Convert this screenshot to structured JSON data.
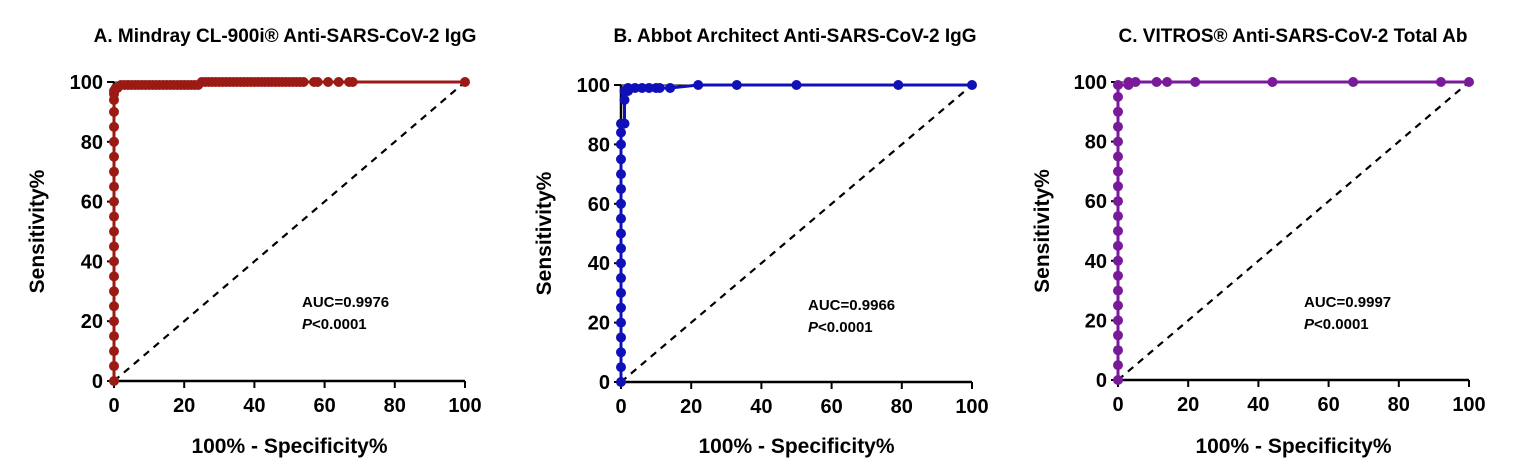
{
  "chart_data": [
    {
      "type": "line",
      "title": "A. Mindray CL-900i® Anti-SARS-CoV-2 IgG",
      "xlabel": "100% - Specificity%",
      "ylabel": "Sensitivity%",
      "xlim": [
        0,
        100
      ],
      "ylim": [
        0,
        100
      ],
      "xticks": [
        "0",
        "20",
        "40",
        "60",
        "80",
        "100"
      ],
      "yticks": [
        "0",
        "20",
        "40",
        "60",
        "80",
        "100"
      ],
      "grid": false,
      "color": "#9B1B14",
      "annotation": {
        "auc": "AUC=0.9976",
        "p_label": "P",
        "p_value": "<0.0001"
      },
      "series": [
        {
          "values": [
            [
              0,
              0
            ],
            [
              0,
              5
            ],
            [
              0,
              10
            ],
            [
              0,
              15
            ],
            [
              0,
              20
            ],
            [
              0,
              25
            ],
            [
              0,
              30
            ],
            [
              0,
              35
            ],
            [
              0,
              40
            ],
            [
              0,
              45
            ],
            [
              0,
              50
            ],
            [
              0,
              55
            ],
            [
              0,
              60
            ],
            [
              0,
              65
            ],
            [
              0,
              70
            ],
            [
              0,
              75
            ],
            [
              0,
              80
            ],
            [
              0,
              85
            ],
            [
              0,
              90
            ],
            [
              0,
              94
            ],
            [
              0,
              96
            ],
            [
              0,
              97
            ],
            [
              0.5,
              98
            ],
            [
              1,
              98
            ],
            [
              2,
              99
            ],
            [
              3,
              99
            ],
            [
              4,
              99
            ],
            [
              5,
              99
            ],
            [
              6,
              99
            ],
            [
              7,
              99
            ],
            [
              8,
              99
            ],
            [
              9,
              99
            ],
            [
              10,
              99
            ],
            [
              11,
              99
            ],
            [
              12,
              99
            ],
            [
              13,
              99
            ],
            [
              14,
              99
            ],
            [
              15,
              99
            ],
            [
              16,
              99
            ],
            [
              17,
              99
            ],
            [
              18,
              99
            ],
            [
              19,
              99
            ],
            [
              20,
              99
            ],
            [
              21,
              99
            ],
            [
              22,
              99
            ],
            [
              23,
              99
            ],
            [
              24,
              99
            ],
            [
              25,
              100
            ],
            [
              26,
              100
            ],
            [
              27,
              100
            ],
            [
              28,
              100
            ],
            [
              29,
              100
            ],
            [
              30,
              100
            ],
            [
              31,
              100
            ],
            [
              32,
              100
            ],
            [
              33,
              100
            ],
            [
              34,
              100
            ],
            [
              35,
              100
            ],
            [
              36,
              100
            ],
            [
              37,
              100
            ],
            [
              38,
              100
            ],
            [
              39,
              100
            ],
            [
              40,
              100
            ],
            [
              41,
              100
            ],
            [
              42,
              100
            ],
            [
              43,
              100
            ],
            [
              44,
              100
            ],
            [
              45,
              100
            ],
            [
              46,
              100
            ],
            [
              47,
              100
            ],
            [
              48,
              100
            ],
            [
              49,
              100
            ],
            [
              50,
              100
            ],
            [
              51,
              100
            ],
            [
              52,
              100
            ],
            [
              53,
              100
            ],
            [
              54,
              100
            ],
            [
              57,
              100
            ],
            [
              58,
              100
            ],
            [
              61,
              100
            ],
            [
              64,
              100
            ],
            [
              67,
              100
            ],
            [
              68,
              100
            ],
            [
              100,
              100
            ]
          ]
        }
      ]
    },
    {
      "type": "line",
      "title": "B. Abbot Architect Anti-SARS-CoV-2 IgG",
      "xlabel": "100% - Specificity%",
      "ylabel": "Sensitivity%",
      "xlim": [
        0,
        100
      ],
      "ylim": [
        0,
        100
      ],
      "xticks": [
        "0",
        "20",
        "40",
        "60",
        "80",
        "100"
      ],
      "yticks": [
        "0",
        "20",
        "40",
        "60",
        "80",
        "100"
      ],
      "grid": false,
      "color": "#1010B8",
      "annotation": {
        "auc": "AUC=0.9966",
        "p_label": "P",
        "p_value": "<0.0001"
      },
      "series": [
        {
          "values": [
            [
              0,
              0
            ],
            [
              0,
              5
            ],
            [
              0,
              10
            ],
            [
              0,
              15
            ],
            [
              0,
              20
            ],
            [
              0,
              25
            ],
            [
              0,
              30
            ],
            [
              0,
              35
            ],
            [
              0,
              40
            ],
            [
              0,
              45
            ],
            [
              0,
              50
            ],
            [
              0,
              55
            ],
            [
              0,
              60
            ],
            [
              0,
              65
            ],
            [
              0,
              70
            ],
            [
              0,
              75
            ],
            [
              0,
              80
            ],
            [
              0,
              84
            ],
            [
              0,
              87
            ],
            [
              1,
              87
            ],
            [
              1,
              95
            ],
            [
              1,
              98
            ],
            [
              2,
              98
            ],
            [
              2,
              99
            ],
            [
              4,
              99
            ],
            [
              6,
              99
            ],
            [
              8,
              99
            ],
            [
              10,
              99
            ],
            [
              11,
              99
            ],
            [
              14,
              99
            ],
            [
              22,
              100
            ],
            [
              33,
              100
            ],
            [
              50,
              100
            ],
            [
              79,
              100
            ],
            [
              100,
              100
            ]
          ]
        }
      ]
    },
    {
      "type": "line",
      "title": "C. VITROS® Anti-SARS-CoV-2 Total Ab",
      "xlabel": "100% - Specificity%",
      "ylabel": "Sensitivity%",
      "xlim": [
        0,
        100
      ],
      "ylim": [
        0,
        100
      ],
      "xticks": [
        "0",
        "20",
        "40",
        "60",
        "80",
        "100"
      ],
      "yticks": [
        "0",
        "20",
        "40",
        "60",
        "80",
        "100"
      ],
      "grid": false,
      "color": "#7A1A9A",
      "annotation": {
        "auc": "AUC=0.9997",
        "p_label": "P",
        "p_value": "<0.0001"
      },
      "series": [
        {
          "values": [
            [
              0,
              0
            ],
            [
              0,
              5
            ],
            [
              0,
              10
            ],
            [
              0,
              15
            ],
            [
              0,
              20
            ],
            [
              0,
              25
            ],
            [
              0,
              30
            ],
            [
              0,
              35
            ],
            [
              0,
              40
            ],
            [
              0,
              45
            ],
            [
              0,
              50
            ],
            [
              0,
              55
            ],
            [
              0,
              60
            ],
            [
              0,
              65
            ],
            [
              0,
              70
            ],
            [
              0,
              75
            ],
            [
              0,
              80
            ],
            [
              0,
              85
            ],
            [
              0,
              90
            ],
            [
              0,
              95
            ],
            [
              0,
              99
            ],
            [
              3,
              99
            ],
            [
              3,
              100
            ],
            [
              5,
              100
            ],
            [
              11,
              100
            ],
            [
              14,
              100
            ],
            [
              22,
              100
            ],
            [
              44,
              100
            ],
            [
              67,
              100
            ],
            [
              92,
              100
            ],
            [
              100,
              100
            ]
          ]
        }
      ]
    }
  ]
}
